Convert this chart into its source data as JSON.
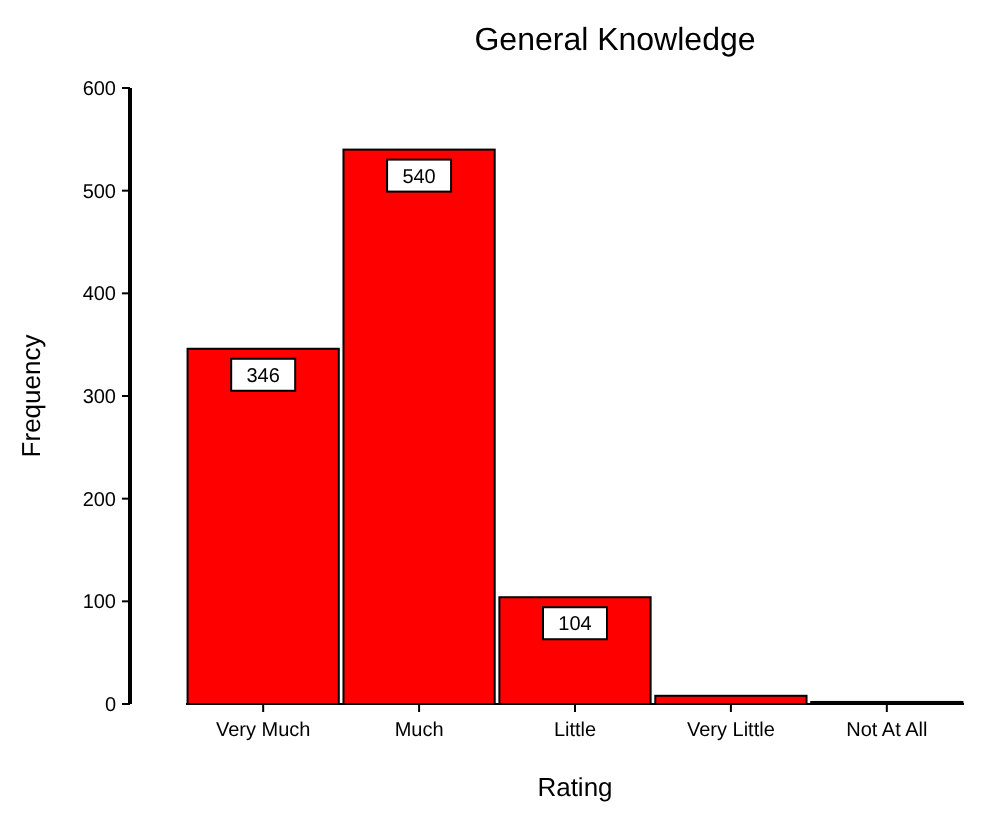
{
  "chart_data": {
    "type": "bar",
    "title": "General Knowledge",
    "xlabel": "Rating",
    "ylabel": "Frequency",
    "categories": [
      "Very Much",
      "Much",
      "Little",
      "Very Little",
      "Not At All"
    ],
    "values": [
      346,
      540,
      104,
      8,
      2
    ],
    "value_labels": [
      "346",
      "540",
      "104",
      null,
      null
    ],
    "color": "#ff0000",
    "ylim": [
      0,
      600
    ],
    "yticks": [
      0,
      100,
      200,
      300,
      400,
      500,
      600
    ],
    "grid": false
  }
}
